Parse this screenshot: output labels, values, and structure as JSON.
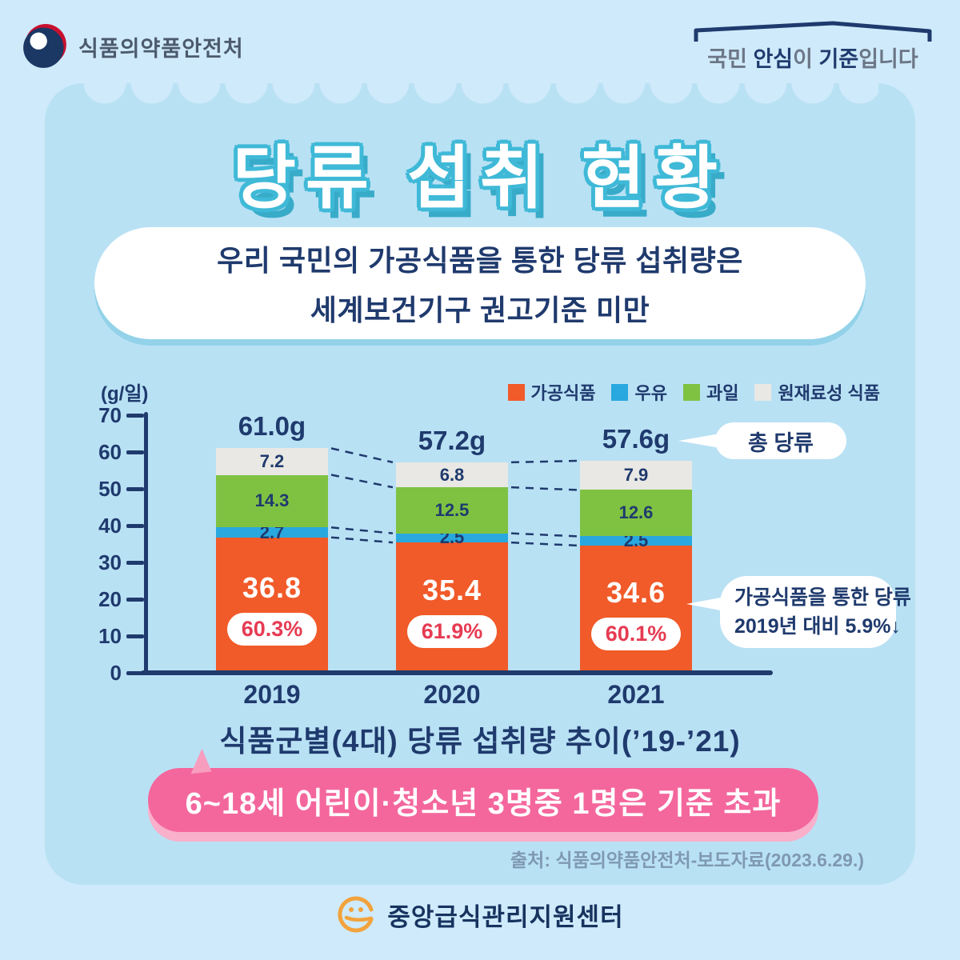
{
  "header": {
    "agency": "식품의약품안전처",
    "slogan": {
      "pre": "국민 ",
      "bold1": "안심",
      "mid": "이 ",
      "bold2": "기준",
      "post": "입니다"
    }
  },
  "title": "당류 섭취 현황",
  "intro": {
    "line1": "우리 국민의 가공식품을 통한 당류 섭취량은",
    "line2": "세계보건기구 권고기준 미만"
  },
  "chart_data": {
    "type": "bar",
    "stacked": true,
    "title": "식품군별(4대) 당류 섭취량 추이(’19-’21)",
    "unit_label": "(g/일)",
    "categories": [
      "2019",
      "2020",
      "2021"
    ],
    "series": [
      {
        "name": "가공식품",
        "color": "#f15a29",
        "values": [
          36.8,
          35.4,
          34.6
        ]
      },
      {
        "name": "우유",
        "color": "#29a8df",
        "values": [
          2.7,
          2.5,
          2.5
        ]
      },
      {
        "name": "과일",
        "color": "#7fc242",
        "values": [
          14.3,
          12.5,
          12.6
        ]
      },
      {
        "name": "원재료성 식품",
        "color": "#e9e8e4",
        "values": [
          7.2,
          6.8,
          7.9
        ]
      }
    ],
    "totals": [
      "61.0g",
      "57.2g",
      "57.6g"
    ],
    "processed_food_share": [
      "60.3%",
      "61.9%",
      "60.1%"
    ],
    "ylim": [
      0,
      70
    ],
    "yticks": [
      0,
      10,
      20,
      30,
      40,
      50,
      60,
      70
    ],
    "legend_position": "top-right",
    "grid": false
  },
  "callouts": {
    "total": "총 당류",
    "note_line1": "가공식품을 통한 당류",
    "note_line2": "2019년 대비 5.9%↓"
  },
  "caption": "식품군별(4대) 당류 섭취량 추이(’19-’21)",
  "banner": "6~18세 어린이·청소년 3명중 1명은 기준 초과",
  "source": "출처: 식품의약품안전처-보도자료(2023.6.29.)",
  "footer": {
    "org": "중앙급식관리지원센터"
  },
  "colors": {
    "page_bg": "#cfeafa",
    "card_bg": "#b9e1f4",
    "navy": "#1f3a6d",
    "teal": "#3fb9d7",
    "orange": "#f15a29",
    "blue": "#29a8df",
    "green": "#7fc242",
    "gray": "#e9e8e4",
    "pink": "#f4679d",
    "pink_light": "#f8b0cb",
    "percent_red": "#e63b52"
  }
}
